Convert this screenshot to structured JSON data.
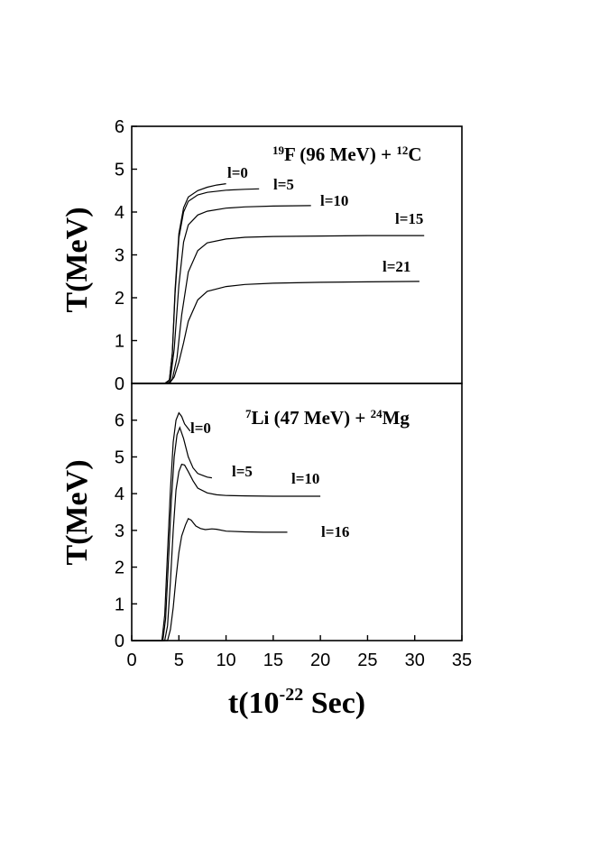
{
  "chart_data": [
    {
      "type": "line",
      "title": {
        "pre": "19",
        "a": "F (96 MeV) + ",
        "sup2": "12",
        "b": "C"
      },
      "ylabel": "T(MeV)",
      "ylim": [
        0,
        6
      ],
      "yticks": [
        "0",
        "1",
        "2",
        "3",
        "4",
        "5",
        "6"
      ],
      "xlim": [
        0,
        35
      ],
      "series": [
        {
          "name": "l=0",
          "x": [
            3.5,
            4.0,
            4.3,
            4.6,
            5.0,
            5.5,
            6.0,
            7.0,
            8.0,
            9.0,
            10.0
          ],
          "y": [
            0,
            0.08,
            0.7,
            2.2,
            3.5,
            4.1,
            4.35,
            4.5,
            4.58,
            4.63,
            4.66
          ]
        },
        {
          "name": "l=5",
          "x": [
            3.5,
            4.0,
            4.3,
            4.6,
            5.0,
            5.5,
            6.0,
            7.0,
            8.0,
            10.0,
            12.0,
            13.5
          ],
          "y": [
            0,
            0.08,
            0.7,
            2.1,
            3.4,
            4.0,
            4.25,
            4.4,
            4.46,
            4.51,
            4.53,
            4.54
          ]
        },
        {
          "name": "l=10",
          "x": [
            3.6,
            4.1,
            4.5,
            5.0,
            5.5,
            6.0,
            7.0,
            8.0,
            10.0,
            12.0,
            15.0,
            19.0
          ],
          "y": [
            0,
            0.1,
            0.8,
            2.3,
            3.3,
            3.7,
            3.93,
            4.02,
            4.09,
            4.12,
            4.14,
            4.15
          ]
        },
        {
          "name": "l=15",
          "x": [
            3.8,
            4.3,
            4.8,
            5.3,
            6.0,
            7.0,
            8.0,
            10.0,
            12.0,
            15.0,
            20.0,
            25.0,
            31.0
          ],
          "y": [
            0,
            0.1,
            0.6,
            1.6,
            2.6,
            3.1,
            3.28,
            3.37,
            3.41,
            3.43,
            3.44,
            3.45,
            3.45
          ]
        },
        {
          "name": "l=21",
          "x": [
            4.0,
            4.5,
            5.0,
            5.5,
            6.0,
            7.0,
            8.0,
            10.0,
            12.0,
            15.0,
            20.0,
            25.0,
            30.5
          ],
          "y": [
            0,
            0.15,
            0.5,
            0.95,
            1.45,
            1.95,
            2.15,
            2.26,
            2.31,
            2.34,
            2.36,
            2.37,
            2.38
          ]
        }
      ],
      "annotations": [
        "l=0",
        "l=5",
        "l=10",
        "l=15",
        "l=21"
      ]
    },
    {
      "type": "line",
      "title": {
        "pre": "7",
        "a": "Li (47 MeV) + ",
        "sup2": "24",
        "b": "Mg"
      },
      "ylabel": "T(MeV)",
      "ylim": [
        0,
        7
      ],
      "yticks": [
        "0",
        "1",
        "2",
        "3",
        "4",
        "5",
        "6"
      ],
      "xlim": [
        0,
        35
      ],
      "xticks": [
        "0",
        "5",
        "10",
        "15",
        "20",
        "25",
        "30",
        "35"
      ],
      "xlabel": {
        "pre": "t(10",
        "sup": "-22",
        "post": " Sec)"
      },
      "series": [
        {
          "name": "l=0",
          "x": [
            3.2,
            3.5,
            3.8,
            4.1,
            4.4,
            4.7,
            5.0,
            5.3,
            5.6,
            5.9,
            6.2
          ],
          "y": [
            0,
            0.7,
            2.4,
            4.1,
            5.4,
            6.0,
            6.2,
            6.1,
            5.9,
            5.8,
            5.7
          ]
        },
        {
          "name": "l=5",
          "x": [
            3.3,
            3.6,
            3.9,
            4.2,
            4.5,
            4.8,
            5.1,
            5.5,
            6.0,
            6.5,
            7.0,
            7.5,
            8.0,
            8.5
          ],
          "y": [
            0,
            0.6,
            2.2,
            3.8,
            5.0,
            5.6,
            5.8,
            5.5,
            5.0,
            4.7,
            4.55,
            4.5,
            4.45,
            4.43
          ]
        },
        {
          "name": "l=10",
          "x": [
            3.5,
            3.8,
            4.1,
            4.4,
            4.7,
            5.0,
            5.3,
            5.6,
            6.0,
            6.5,
            7.0,
            8.0,
            9.0,
            10.0,
            12.0,
            15.0,
            20.0
          ],
          "y": [
            0,
            0.4,
            1.6,
            3.0,
            4.1,
            4.6,
            4.8,
            4.78,
            4.6,
            4.35,
            4.15,
            4.02,
            3.97,
            3.95,
            3.94,
            3.93,
            3.93
          ]
        },
        {
          "name": "l=16",
          "x": [
            3.8,
            4.1,
            4.4,
            4.7,
            5.0,
            5.3,
            5.7,
            6.0,
            6.3,
            6.8,
            7.3,
            7.8,
            8.5,
            9.0,
            10.0,
            12.0,
            14.0,
            16.5
          ],
          "y": [
            0,
            0.3,
            0.9,
            1.7,
            2.4,
            2.85,
            3.15,
            3.32,
            3.28,
            3.12,
            3.05,
            3.02,
            3.04,
            3.03,
            2.98,
            2.96,
            2.95,
            2.95
          ]
        }
      ],
      "annotations": [
        "l=0",
        "l=5",
        "l=10",
        "l=16"
      ]
    }
  ]
}
